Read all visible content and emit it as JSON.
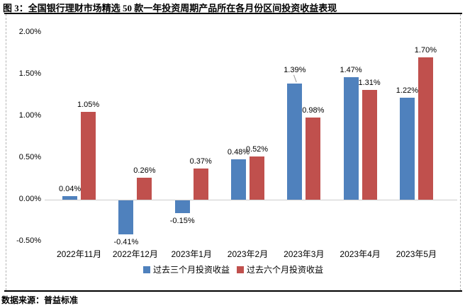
{
  "title": "图 3：全国银行理财市场精选 50 款一年投资周期产品所在各月份区间投资收益表现",
  "source": "数据来源：普益标准",
  "chart_data": {
    "type": "bar",
    "title": "全国银行理财市场精选50款一年投资周期产品所在各月份区间投资收益表现",
    "categories": [
      "2022年11月",
      "2022年12月",
      "2023年1月",
      "2023年2月",
      "2023年3月",
      "2023年4月",
      "2023年5月"
    ],
    "series": [
      {
        "name": "过去三个月投资收益",
        "color": "#4F81BD",
        "values": [
          0.04,
          -0.41,
          -0.15,
          0.48,
          1.39,
          1.47,
          1.22
        ],
        "labels": [
          "0.04%",
          "-0.41%",
          "-0.15%",
          "0.48%",
          "1.39%",
          "1.47%",
          "1.22%"
        ]
      },
      {
        "name": "过去六个月投资收益",
        "color": "#C0504D",
        "values": [
          1.05,
          0.26,
          0.37,
          0.52,
          0.98,
          1.31,
          1.7
        ],
        "labels": [
          "1.05%",
          "0.26%",
          "0.37%",
          "0.52%",
          "0.98%",
          "1.31%",
          "1.70%"
        ]
      }
    ],
    "xlabel": "",
    "ylabel": "",
    "ylim": [
      -0.5,
      2.0
    ],
    "ytick_values": [
      2.0,
      1.5,
      1.0,
      0.5,
      0.0,
      -0.5
    ],
    "ytick_labels": [
      "2.00%",
      "1.50%",
      "1.00%",
      "0.50%",
      "0.00%",
      "-0.50%"
    ],
    "grid": false,
    "legend_position": "bottom",
    "data_labels": true,
    "axis_line_color": "#cdcdcd",
    "frame_border_color": "#b3b3b3"
  }
}
